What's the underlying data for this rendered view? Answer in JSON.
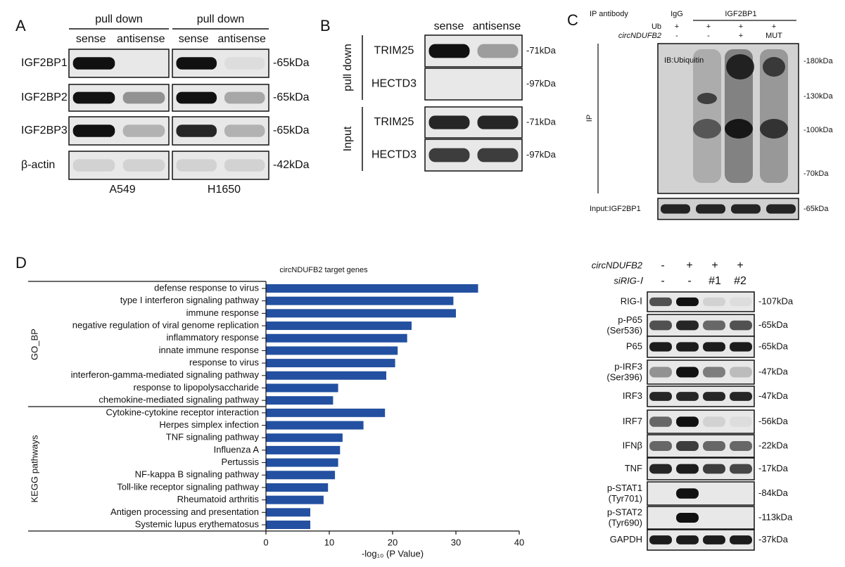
{
  "panel_a": {
    "letter": "A",
    "groups": [
      {
        "header": "pull down",
        "lanes": [
          "sense",
          "antisense"
        ],
        "cell_line": "A549"
      },
      {
        "header": "pull down",
        "lanes": [
          "sense",
          "antisense"
        ],
        "cell_line": "H1650"
      }
    ],
    "rows": [
      {
        "label": "IGF2BP1",
        "size": "-65kDa"
      },
      {
        "label": "IGF2BP2",
        "size": "-65kDa"
      },
      {
        "label": "IGF2BP3",
        "size": "-65kDa"
      },
      {
        "label": "β-actin",
        "size": "-42kDa"
      }
    ]
  },
  "panel_b": {
    "letter": "B",
    "lanes": [
      "sense",
      "antisense"
    ],
    "sections": [
      {
        "label": "pull down",
        "rows": [
          {
            "label": "TRIM25",
            "size": "-71kDa"
          },
          {
            "label": "HECTD3",
            "size": "-97kDa"
          }
        ]
      },
      {
        "label": "Input",
        "rows": [
          {
            "label": "TRIM25",
            "size": "-71kDa"
          },
          {
            "label": "HECTD3",
            "size": "-97kDa"
          }
        ]
      }
    ]
  },
  "panel_c": {
    "letter": "C",
    "header_label": "IP antibody",
    "control": "IgG",
    "antibody": "IGF2BP1",
    "conditions": [
      {
        "label": "Ub",
        "values": [
          "+",
          "+",
          "+",
          "+"
        ]
      },
      {
        "label": "circNDUFB2",
        "values": [
          "-",
          "-",
          "+",
          "MUT"
        ]
      }
    ],
    "ip_label": "IP",
    "ib_label": "IB:Ubiquitin",
    "markers": [
      "-180kDa",
      "-130kDa",
      "-100kDa",
      "-70kDa"
    ],
    "input_label": "Input:IGF2BP1",
    "input_size": "-65kDa"
  },
  "panel_d": {
    "letter": "D"
  },
  "panel_e": {
    "conditions": [
      {
        "label": "circNDUFB2",
        "values": [
          "-",
          "+",
          "+",
          "+"
        ]
      },
      {
        "label": "siRIG-Ⅰ",
        "values": [
          "-",
          "-",
          "#1",
          "#2"
        ]
      }
    ],
    "rows": [
      {
        "label": "RIG-Ⅰ",
        "size": "-107kDa"
      },
      {
        "label": "p-P65",
        "sub": "(Ser536)",
        "size": "-65kDa"
      },
      {
        "label": "P65",
        "size": "-65kDa"
      },
      {
        "label": "p-IRF3",
        "sub": "(Ser396)",
        "size": "-47kDa"
      },
      {
        "label": "IRF3",
        "size": "-47kDa"
      },
      {
        "label": "IRF7",
        "size": "-56kDa"
      },
      {
        "label": "IFNβ",
        "size": "-22kDa"
      },
      {
        "label": "TNF",
        "size": "-17kDa"
      },
      {
        "label": "p-STAT1",
        "sub": "(Tyr701)",
        "size": "-84kDa"
      },
      {
        "label": "p-STAT2",
        "sub": "(Tyr690)",
        "size": "-113kDa"
      },
      {
        "label": "GAPDH",
        "size": "-37kDa"
      }
    ]
  },
  "chart_data": {
    "type": "bar",
    "orientation": "horizontal",
    "title": "circNDUFB2 target genes",
    "x_label": "-log₁₀ (P Value)",
    "color": "#2350a0",
    "xlim": [
      0,
      40
    ],
    "xticks": [
      0,
      10,
      20,
      30,
      40
    ],
    "groups": [
      {
        "name": "GO_BP",
        "categories": [
          "defense response to virus",
          "type I interferon signaling pathway",
          "immune response",
          "negative regulation of viral genome replication",
          "inflammatory response",
          "innate immune response",
          "response to virus",
          "interferon-gamma-mediated signaling pathway",
          "response to lipopolysaccharide",
          "chemokine-mediated signaling pathway"
        ],
        "values": [
          33.5,
          29.6,
          30.0,
          23.0,
          22.3,
          20.8,
          20.4,
          19.0,
          11.4,
          10.6
        ]
      },
      {
        "name": "KEGG pathways",
        "categories": [
          "Cytokine-cytokine receptor interaction",
          "Herpes simplex infection",
          "TNF signaling pathway",
          "Influenza A",
          "Pertussis",
          "NF-kappa B signaling pathway",
          "Toll-like receptor signaling pathway",
          "Rheumatoid arthritis",
          "Antigen processing and presentation",
          "Systemic lupus erythematosus"
        ],
        "values": [
          18.8,
          15.4,
          12.1,
          11.7,
          11.4,
          10.9,
          9.8,
          9.1,
          7.0,
          7.0
        ]
      }
    ]
  }
}
